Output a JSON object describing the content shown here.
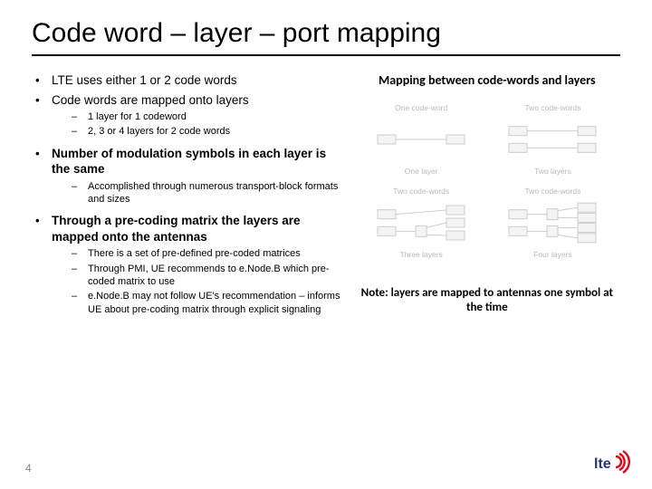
{
  "title": "Code word – layer – port mapping",
  "bullets": [
    {
      "text": "LTE uses either 1 or 2 code words",
      "bold": false
    },
    {
      "text": "Code words are mapped onto layers",
      "bold": false,
      "sub": [
        "1 layer  for 1 codeword",
        "2, 3 or 4 layers for 2 code words"
      ]
    },
    {
      "text": "Number of modulation symbols in each layer is the same",
      "bold": true,
      "sub": [
        "Accomplished through numerous transport-block formats and sizes"
      ]
    },
    {
      "text": "Through a pre-coding matrix the layers are mapped onto the antennas",
      "bold": true,
      "sub": [
        "There is a set of pre-defined pre-coded matrices",
        "Through PMI, UE recommends to e.Node.B which pre-coded matrix to use",
        "e.Node.B may not follow UE's recommendation – informs UE about pre-coding matrix through explicit signaling"
      ]
    }
  ],
  "right": {
    "heading": "Mapping between code-words and layers",
    "diagrams": [
      {
        "top": "One code-word",
        "bottom": "One layer",
        "cw": 1,
        "layers": 1
      },
      {
        "top": "Two code-words",
        "bottom": "Two layers",
        "cw": 2,
        "layers": 2
      },
      {
        "top": "Two code-words",
        "bottom": "Three layers",
        "cw": 2,
        "layers": 3
      },
      {
        "top": "Two code-words",
        "bottom": "Four layers",
        "cw": 2,
        "layers": 4
      }
    ],
    "note": "Note: layers are mapped to antennas one symbol at the time"
  },
  "page": "4",
  "colors": {
    "box_fill": "#f4f4f4",
    "box_stroke": "#cdcdcd",
    "line": "#cdcdcd",
    "caption": "#b9b9b9",
    "logo_red": "#e30613",
    "logo_text": "#23357a"
  }
}
